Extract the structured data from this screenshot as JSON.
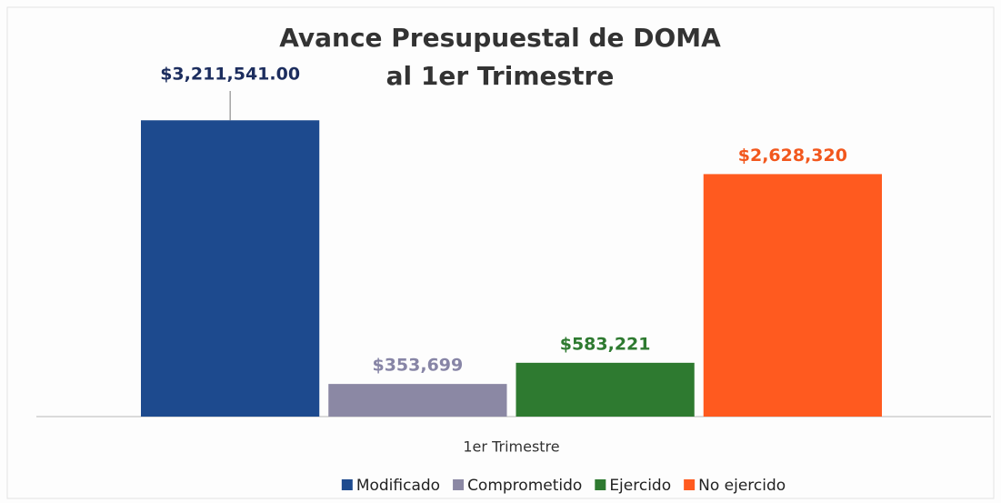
{
  "chart_data": {
    "type": "bar",
    "title": [
      "Avance Presupuestal de DOMA",
      "al 1er Trimestre"
    ],
    "categories": [
      "1er Trimestre"
    ],
    "series": [
      {
        "name": "Modificado",
        "color": "#1d4a8e",
        "label_color": "#1c2d5e",
        "values": [
          3211541
        ],
        "value_labels": [
          "$3,211,541.00"
        ]
      },
      {
        "name": "Comprometido",
        "color": "#8b88a4",
        "label_color": "#8785a6",
        "values": [
          353699
        ],
        "value_labels": [
          "$353,699"
        ]
      },
      {
        "name": "Ejercido",
        "color": "#2e7a30",
        "label_color": "#2e7a30",
        "values": [
          583221
        ],
        "value_labels": [
          "$583,221"
        ]
      },
      {
        "name": "No ejercido",
        "color": "#ff5a1f",
        "label_color": "#f2571d",
        "values": [
          2628320
        ],
        "value_labels": [
          "$2,628,320"
        ]
      }
    ],
    "ylim": [
      0,
      3500000
    ],
    "legend": "bottom"
  }
}
